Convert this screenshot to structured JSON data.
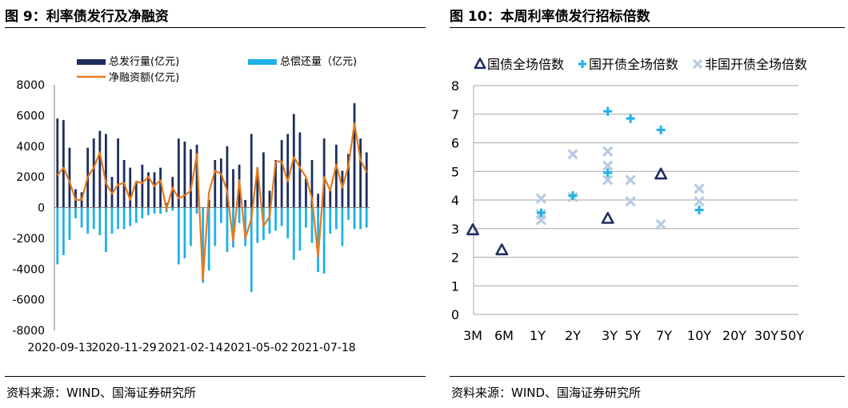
{
  "left": {
    "title": "图 9：利率债发行及净融资",
    "source": "资料来源：WIND、国海证券研究所"
  },
  "right": {
    "title": "图 10：本周利率债发行招标倍数",
    "source": "资料来源：WIND、国海证券研究所"
  },
  "colors": {
    "navy": "#1F2E5E",
    "cyan": "#1FB1E6",
    "orange": "#E47A1E",
    "lightblue": "#B7CBE2",
    "grid": "#A6A6A6"
  },
  "chart_data": [
    {
      "type": "bar",
      "legend": [
        "总发行量(亿元)",
        "总偿还量（亿元)",
        "净融资额(亿元)"
      ],
      "ylim": [
        -8000,
        8000
      ],
      "yticks": [
        8000,
        6000,
        4000,
        2000,
        0,
        -2000,
        -4000,
        -6000,
        -8000
      ],
      "xtick_labels": [
        "2020-09-13",
        "2020-11-29",
        "2021-02-14",
        "2021-05-02",
        "2021-07-18"
      ],
      "series": [
        {
          "name": "总发行量(亿元)",
          "kind": "bar",
          "values": [
            5800,
            5700,
            3900,
            1200,
            1000,
            3900,
            4500,
            5000,
            4800,
            2000,
            4500,
            3100,
            2600,
            1700,
            2800,
            2300,
            2300,
            2600,
            300,
            2000,
            4500,
            4300,
            3800,
            4100,
            0,
            500,
            3100,
            3200,
            4000,
            2500,
            2800,
            500,
            4800,
            2600,
            3600,
            1100,
            3100,
            4400,
            4800,
            6100,
            4900,
            1900,
            3100,
            900,
            4500,
            1100,
            4100,
            2400,
            3500,
            6800,
            4500,
            3600
          ]
        },
        {
          "name": "总偿还量（亿元)",
          "kind": "bar",
          "values": [
            -3700,
            -3100,
            -2100,
            -700,
            -1300,
            -1700,
            -1400,
            -1800,
            -2900,
            -1700,
            -1400,
            -1400,
            -1200,
            -1000,
            -700,
            -500,
            -400,
            -400,
            -300,
            -200,
            -3700,
            -3300,
            -2500,
            -400,
            -4900,
            -4100,
            -2500,
            -1000,
            -2900,
            -2600,
            -1000,
            -2500,
            -5500,
            -2300,
            -2100,
            -1700,
            -1500,
            -1200,
            -2000,
            -3400,
            -2800,
            -1300,
            -2300,
            -4200,
            -4300,
            -1700,
            -1400,
            -2500,
            -800,
            -1400,
            -1400,
            -1300
          ]
        },
        {
          "name": "净融资额(亿元)",
          "kind": "line",
          "values": [
            2100,
            2600,
            1700,
            500,
            500,
            2000,
            2600,
            3600,
            1600,
            900,
            1500,
            1600,
            500,
            1700,
            1600,
            2000,
            1400,
            1800,
            -100,
            1300,
            600,
            800,
            1100,
            3500,
            -4700,
            1000,
            2400,
            2200,
            1100,
            -2200,
            1800,
            -2000,
            -700,
            2600,
            -1200,
            -600,
            3000,
            3000,
            1700,
            3300,
            2600,
            2000,
            600,
            -3200,
            2000,
            1100,
            2800,
            1300,
            2700,
            5500,
            3100,
            2300
          ]
        }
      ]
    },
    {
      "type": "scatter",
      "categories": [
        "3M",
        "6M",
        "1Y",
        "2Y",
        "3Y",
        "5Y",
        "7Y",
        "10Y",
        "20Y",
        "30Y",
        "50Y"
      ],
      "ylim": [
        0,
        8
      ],
      "yticks": [
        8,
        7,
        6,
        5,
        4,
        3,
        2,
        1,
        0
      ],
      "legend": [
        {
          "label": "国债全场倍数",
          "icon": "triangle-icon"
        },
        {
          "label": "国开债全场倍数",
          "icon": "plus-icon"
        },
        {
          "label": "非国开债全场倍数",
          "icon": "cross-icon"
        }
      ],
      "series": [
        {
          "name": "国债全场倍数",
          "points": [
            [
              0,
              2.95
            ],
            [
              0.93,
              2.25
            ],
            [
              3.95,
              3.35
            ],
            [
              5.9,
              4.9
            ]
          ]
        },
        {
          "name": "国开债全场倍数",
          "points": [
            [
              2.1,
              3.55
            ],
            [
              3.0,
              4.15
            ],
            [
              3.95,
              7.1
            ],
            [
              3.95,
              4.95
            ],
            [
              4.9,
              6.85
            ],
            [
              5.9,
              6.45
            ],
            [
              7.0,
              3.65
            ]
          ]
        },
        {
          "name": "非国开债全场倍数",
          "points": [
            [
              2.1,
              4.05
            ],
            [
              2.1,
              3.5
            ],
            [
              2.1,
              3.3
            ],
            [
              3.0,
              5.6
            ],
            [
              3.0,
              4.1
            ],
            [
              3.95,
              5.7
            ],
            [
              3.95,
              5.2
            ],
            [
              3.95,
              4.7
            ],
            [
              4.9,
              4.7
            ],
            [
              4.9,
              3.95
            ],
            [
              5.9,
              3.15
            ],
            [
              7.0,
              4.4
            ],
            [
              7.0,
              3.95
            ]
          ]
        }
      ]
    }
  ]
}
